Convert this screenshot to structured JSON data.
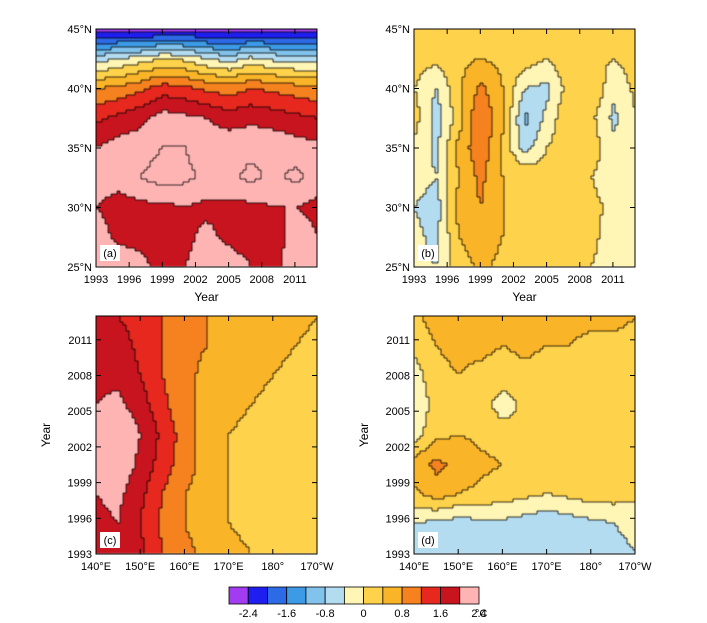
{
  "colors": {
    "palette": [
      "#a23cf0",
      "#1e1ef0",
      "#2d6ae6",
      "#3c9ae6",
      "#82c3ec",
      "#b4dcf0",
      "#fff5b4",
      "#ffd24b",
      "#fab428",
      "#f5821e",
      "#e6281e",
      "#c8141e",
      "#ffb4b4"
    ],
    "contour_line": "#000000"
  },
  "colorbar": {
    "tick_labels": [
      "-2.4",
      "-1.6",
      "-0.8",
      "0",
      "0.8",
      "1.6",
      "2.4"
    ],
    "unit": "°C"
  },
  "chart_data": [
    {
      "type": "heatmap",
      "panel_label": "(a)",
      "xlabel": "Year",
      "ylabel": "",
      "x_ticks": [
        "1993",
        "1996",
        "1999",
        "2002",
        "2005",
        "2008",
        "2011"
      ],
      "y_ticks": [
        "25°N",
        "30°N",
        "35°N",
        "40°N",
        "45°N"
      ],
      "x_range": [
        1993,
        2013
      ],
      "y_range": [
        25,
        45
      ],
      "levels": [
        -2.4,
        -2.0,
        -1.6,
        -1.2,
        -0.8,
        -0.4,
        0,
        0.4,
        0.8,
        1.2,
        1.6,
        2.0,
        2.4
      ],
      "field": [
        [
          2.2,
          2.3,
          2.2,
          1.7,
          2.0,
          2.2,
          2.2,
          2.0,
          1.9,
          2.2,
          2.1
        ],
        [
          2.2,
          1.9,
          1.8,
          1.8,
          1.9,
          2.1,
          1.9,
          1.8,
          1.8,
          2.2,
          2.0
        ],
        [
          2.0,
          1.8,
          1.9,
          1.9,
          2.0,
          1.9,
          1.9,
          1.9,
          2.0,
          2.0,
          1.9
        ],
        [
          2.2,
          2.2,
          2.4,
          2.6,
          2.5,
          2.3,
          2.3,
          2.5,
          2.3,
          2.5,
          2.2
        ],
        [
          2.0,
          2.2,
          2.2,
          2.4,
          2.4,
          2.2,
          2.3,
          2.3,
          2.3,
          2.2,
          2.1
        ],
        [
          1.5,
          1.7,
          1.9,
          2.2,
          2.1,
          2.0,
          1.8,
          1.9,
          1.8,
          1.7,
          1.6
        ],
        [
          0.8,
          0.9,
          1.1,
          1.4,
          1.3,
          1.1,
          1.0,
          1.2,
          1.1,
          1.0,
          0.9
        ],
        [
          -0.6,
          -0.4,
          -0.2,
          0.0,
          -0.1,
          -0.4,
          -0.6,
          -0.3,
          -0.5,
          -0.6,
          -0.6
        ],
        [
          -2.6,
          -2.6,
          -2.7,
          -2.6,
          -2.6,
          -2.6,
          -2.7,
          -2.6,
          -2.6,
          -2.6,
          -2.6
        ]
      ]
    },
    {
      "type": "heatmap",
      "panel_label": "(b)",
      "xlabel": "Year",
      "ylabel": "",
      "x_ticks": [
        "1993",
        "1996",
        "1999",
        "2002",
        "2005",
        "2008",
        "2011"
      ],
      "y_ticks": [
        "25°N",
        "30°N",
        "35°N",
        "40°N",
        "45°N"
      ],
      "x_range": [
        1993,
        2013
      ],
      "y_range": [
        25,
        45
      ],
      "levels": [
        -2.4,
        -2.0,
        -1.6,
        -1.2,
        -0.8,
        -0.4,
        0,
        0.4,
        0.8,
        1.2,
        1.6,
        2.0,
        2.4
      ],
      "field": [
        [
          -0.3,
          -0.4,
          0.2,
          0.5,
          0.3,
          0.1,
          0.1,
          0.2,
          0.0,
          -0.2,
          -0.3
        ],
        [
          -0.3,
          -0.5,
          0.4,
          0.6,
          0.4,
          0.2,
          0.1,
          0.2,
          0.1,
          -0.2,
          -0.4
        ],
        [
          -0.4,
          -0.6,
          0.5,
          0.8,
          0.4,
          0.3,
          0.2,
          0.3,
          0.1,
          -0.1,
          -0.3
        ],
        [
          -0.2,
          -0.4,
          0.4,
          0.9,
          0.4,
          0.4,
          0.2,
          0.2,
          0.0,
          -0.2,
          -0.2
        ],
        [
          -0.1,
          -0.5,
          0.5,
          1.1,
          0.3,
          -0.6,
          0.0,
          0.3,
          0.2,
          -0.3,
          -0.2
        ],
        [
          0.2,
          -0.6,
          0.2,
          1.2,
          0.5,
          -0.9,
          -0.3,
          0.4,
          0.1,
          -0.5,
          0.0
        ],
        [
          0.0,
          -0.4,
          0.3,
          0.9,
          0.4,
          -0.4,
          -0.5,
          0.2,
          0.4,
          -0.3,
          0.1
        ],
        [
          0.2,
          0.1,
          0.3,
          0.4,
          0.3,
          0.2,
          0.0,
          0.3,
          0.1,
          0.0,
          0.2
        ],
        [
          0.3,
          0.2,
          0.1,
          0.3,
          0.2,
          0.3,
          0.2,
          0.1,
          0.2,
          0.3,
          0.3
        ]
      ]
    },
    {
      "type": "heatmap",
      "panel_label": "(c)",
      "xlabel": "",
      "ylabel": "Year",
      "x_ticks": [
        "140°E",
        "150°E",
        "160°E",
        "170°E",
        "180°",
        "170°W"
      ],
      "y_ticks": [
        "1993",
        "1996",
        "1999",
        "2002",
        "2005",
        "2008",
        "2011"
      ],
      "x_range": [
        140,
        190
      ],
      "y_range": [
        1993,
        2013
      ],
      "levels": [
        -2.4,
        -2.0,
        -1.6,
        -1.2,
        -0.8,
        -0.4,
        0,
        0.4,
        0.8,
        1.2,
        1.6,
        2.0,
        2.4
      ],
      "field": [
        [
          1.9,
          2.0,
          1.7,
          1.2,
          0.9,
          0.7,
          0.5,
          0.4,
          0.3,
          0.3,
          0.2
        ],
        [
          1.9,
          2.0,
          1.6,
          1.1,
          0.8,
          0.6,
          0.4,
          0.3,
          0.2,
          0.2,
          0.2
        ],
        [
          2.0,
          2.1,
          1.7,
          1.2,
          0.8,
          0.6,
          0.4,
          0.3,
          0.2,
          0.1,
          0.1
        ],
        [
          2.1,
          2.3,
          1.9,
          1.4,
          1.0,
          0.6,
          0.4,
          0.2,
          0.1,
          0.0,
          0.0
        ],
        [
          2.2,
          2.4,
          2.0,
          1.5,
          1.0,
          0.6,
          0.4,
          0.3,
          0.2,
          0.1,
          0.1
        ],
        [
          2.0,
          2.1,
          1.8,
          1.3,
          0.9,
          0.7,
          0.5,
          0.4,
          0.3,
          0.3,
          0.2
        ],
        [
          1.9,
          1.9,
          1.6,
          1.2,
          0.9,
          0.7,
          0.6,
          0.5,
          0.4,
          0.3,
          0.3
        ],
        [
          1.8,
          1.8,
          1.5,
          1.2,
          0.9,
          0.8,
          0.6,
          0.5,
          0.5,
          0.4,
          0.3
        ],
        [
          1.7,
          1.6,
          1.4,
          1.2,
          1.0,
          0.8,
          0.7,
          0.6,
          0.5,
          0.5,
          0.4
        ]
      ]
    },
    {
      "type": "heatmap",
      "panel_label": "(d)",
      "xlabel": "",
      "ylabel": "Year",
      "x_ticks": [
        "140°E",
        "150°E",
        "160°E",
        "170°E",
        "180°",
        "170°W"
      ],
      "y_ticks": [
        "1993",
        "1996",
        "1999",
        "2002",
        "2005",
        "2008",
        "2011"
      ],
      "x_range": [
        140,
        190
      ],
      "y_range": [
        1993,
        2013
      ],
      "levels": [
        -2.4,
        -2.0,
        -1.6,
        -1.2,
        -0.8,
        -0.4,
        0,
        0.4,
        0.8,
        1.2,
        1.6,
        2.0,
        2.4
      ],
      "field": [
        [
          -0.5,
          -0.4,
          -0.5,
          -0.6,
          -0.6,
          -0.5,
          -0.6,
          -0.5,
          -0.4,
          -0.5,
          -0.4
        ],
        [
          -0.4,
          -0.5,
          -0.6,
          -0.5,
          -0.5,
          -0.6,
          -0.7,
          -0.6,
          -0.5,
          -0.4,
          -0.3
        ],
        [
          0.3,
          0.6,
          0.4,
          0.3,
          0.2,
          0.1,
          0.0,
          0.1,
          0.2,
          0.2,
          0.1
        ],
        [
          0.6,
          0.9,
          0.7,
          0.5,
          0.4,
          0.3,
          0.2,
          0.2,
          0.2,
          0.1,
          0.1
        ],
        [
          -0.2,
          0.3,
          0.4,
          0.3,
          0.2,
          0.1,
          0.2,
          0.3,
          0.2,
          0.2,
          0.1
        ],
        [
          -0.4,
          0.2,
          0.3,
          0.2,
          -0.2,
          0.1,
          0.3,
          0.2,
          0.3,
          0.1,
          0.2
        ],
        [
          -0.2,
          0.3,
          0.4,
          0.3,
          0.2,
          0.3,
          0.2,
          0.1,
          0.2,
          0.2,
          0.1
        ],
        [
          0.1,
          0.4,
          0.5,
          0.5,
          0.4,
          0.5,
          0.4,
          0.4,
          0.3,
          0.3,
          0.3
        ],
        [
          0.3,
          0.6,
          0.7,
          0.6,
          0.6,
          0.6,
          0.5,
          0.5,
          0.5,
          0.5,
          0.4
        ]
      ]
    }
  ]
}
